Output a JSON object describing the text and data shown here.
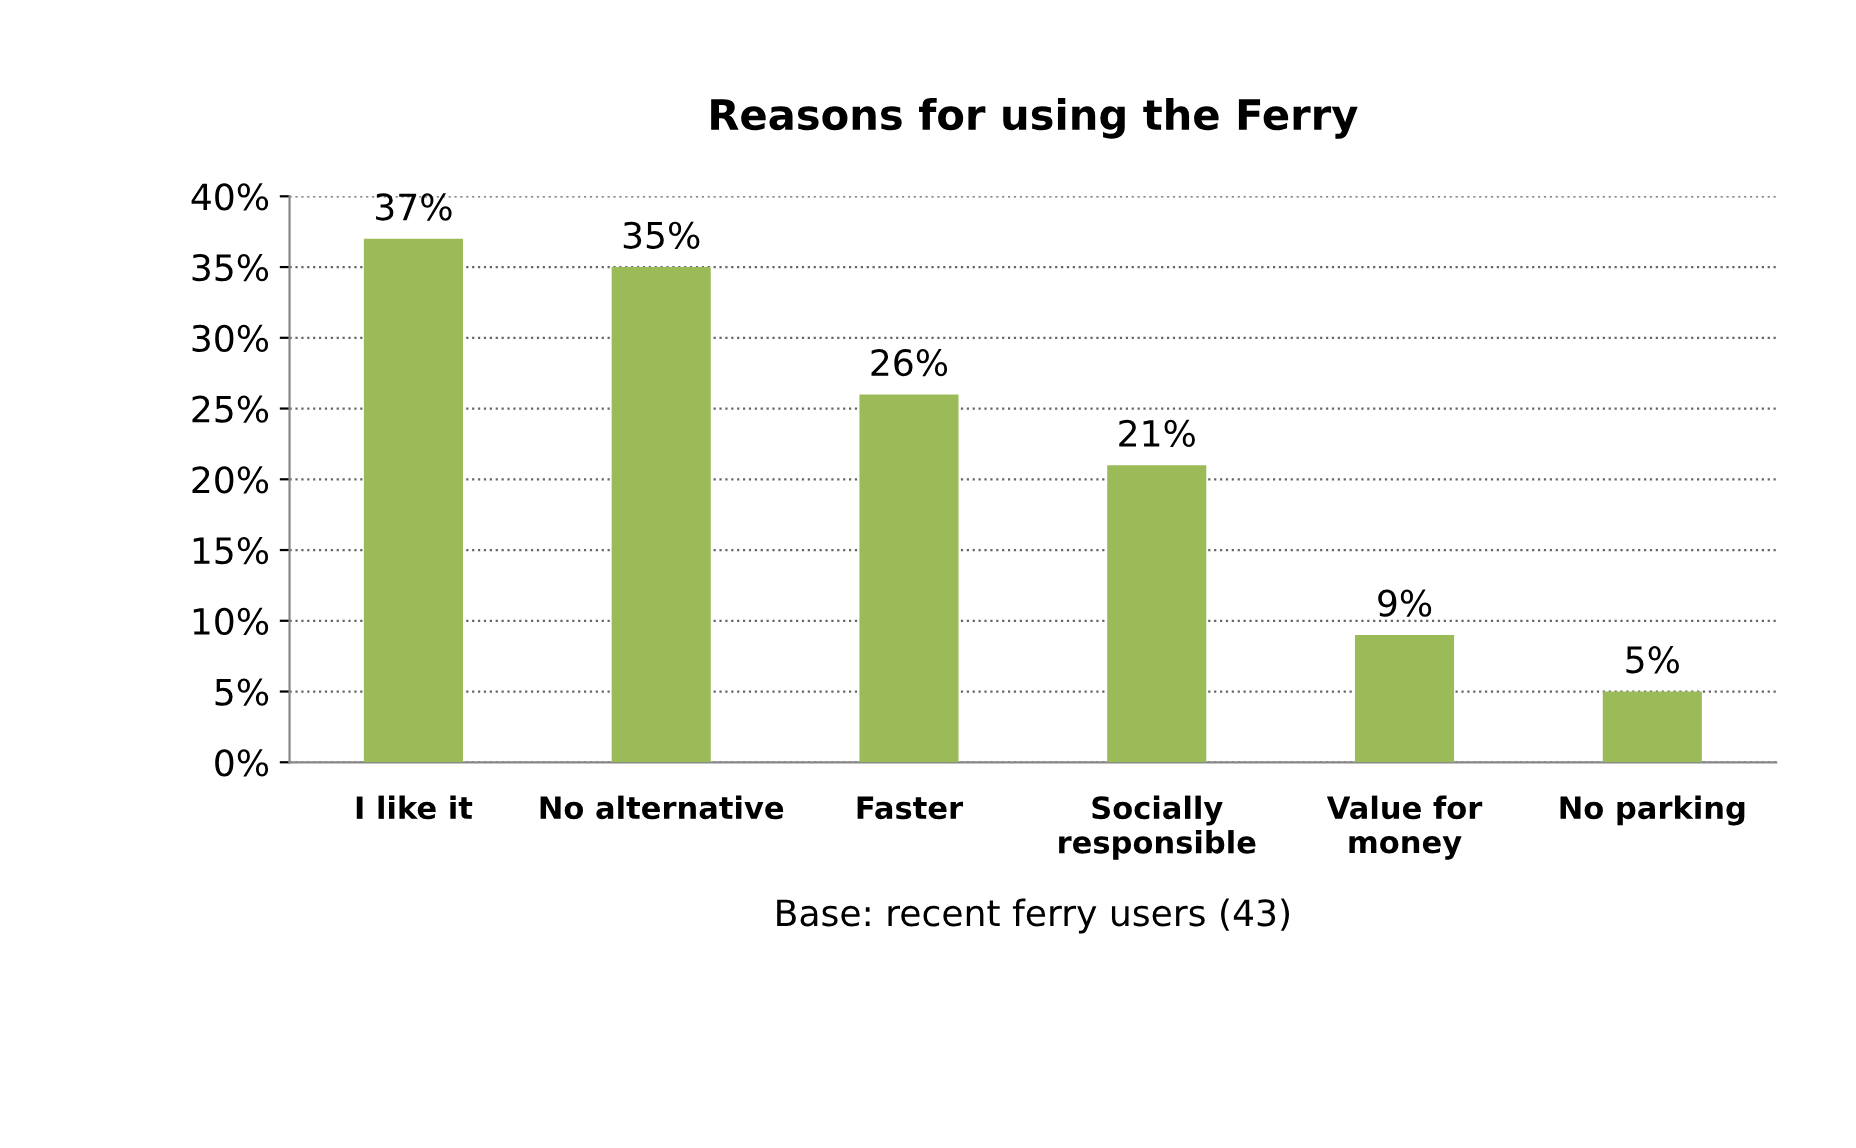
{
  "chart_data": {
    "type": "bar",
    "title": "Reasons for using the Ferry",
    "categories": [
      "I like it",
      "No alternative",
      "Faster",
      "Socially\nresponsible",
      "Value for\nmoney",
      "No parking"
    ],
    "values": [
      37,
      35,
      26,
      21,
      9,
      5
    ],
    "value_labels": [
      "37%",
      "35%",
      "26%",
      "21%",
      "9%",
      "5%"
    ],
    "color": "#9bbb59",
    "xlabel": "Base: recent ferry users (43)",
    "ylim": [
      0,
      40
    ],
    "yticks": [
      {
        "value": 0,
        "label": "0%"
      },
      {
        "value": 5,
        "label": "5%"
      },
      {
        "value": 10,
        "label": "10%"
      },
      {
        "value": 15,
        "label": "15%"
      },
      {
        "value": 20,
        "label": "20%"
      },
      {
        "value": 25,
        "label": "25%"
      },
      {
        "value": 30,
        "label": "30%"
      },
      {
        "value": 35,
        "label": "35%"
      },
      {
        "value": 40,
        "label": "40%"
      }
    ],
    "grid": "y",
    "legend": false
  }
}
